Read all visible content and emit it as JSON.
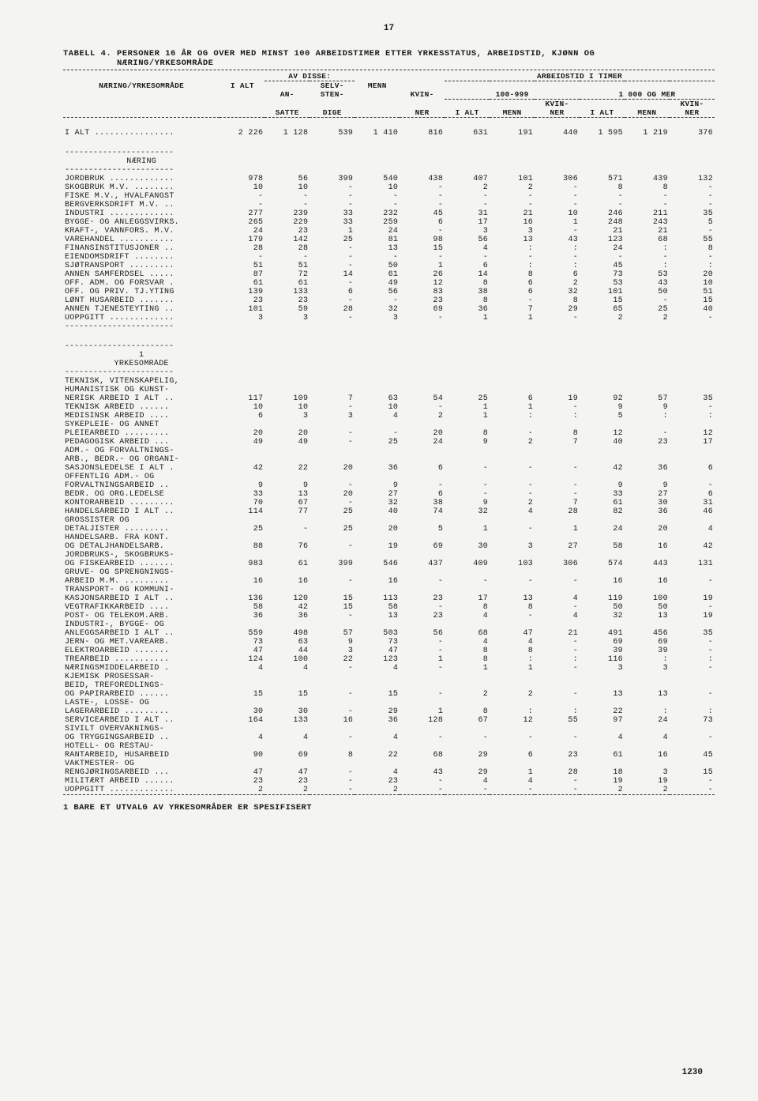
{
  "page_number_top": "17",
  "page_number_bottom": "1230",
  "title_line1": "TABELL 4. PERSONER 16 ÅR OG OVER MED MINST 100 ARBEIDSTIMER ETTER YRKESSTATUS, ARBEIDSTID, KJØNN OG",
  "title_line2": "          NÆRING/YRKESOMRÅDE",
  "header": {
    "group_top1": "AV DISSE:",
    "group_top2": "ARBEIDSTID I TIMER",
    "row1_label": "NÆRING/YRKESOMRÅDE",
    "c1": "I ALT",
    "c2a": "AN-",
    "c2b": "SATTE",
    "c3a": "SELV-",
    "c3b": "STEN-",
    "c3c": "DIGE",
    "c4": "MENN",
    "c5a": "KVIN-",
    "c5b": "NER",
    "sub1": "100-999",
    "sub2": "1 000 OG MER",
    "c6": "I ALT",
    "c7": "MENN",
    "c8a": "KVIN-",
    "c8b": "NER",
    "c9": "I ALT",
    "c10": "MENN",
    "c11a": "KVIN-",
    "c11b": "NER"
  },
  "section_titles": {
    "naering": "NÆRING",
    "yrke_num": "1",
    "yrke": "YRKESOMRÅDE"
  },
  "footnote": "1 BARE ET UTVALG AV YRKESOMRÅDER ER SPESIFISERT",
  "total_row": {
    "label": "I ALT ................",
    "v": [
      "2 226",
      "1 128",
      "539",
      "1 410",
      "816",
      "631",
      "191",
      "440",
      "1 595",
      "1 219",
      "376"
    ]
  },
  "rows_naering": [
    {
      "label": "JORDBRUK .............",
      "v": [
        "978",
        "56",
        "399",
        "540",
        "438",
        "407",
        "101",
        "306",
        "571",
        "439",
        "132"
      ]
    },
    {
      "label": "SKOGBRUK M.V. ........",
      "v": [
        "10",
        "10",
        "-",
        "10",
        "-",
        "2",
        "2",
        "-",
        "8",
        "8",
        "-"
      ]
    },
    {
      "label": "FISKE M.V., HVALFANGST",
      "v": [
        "-",
        "-",
        "-",
        "-",
        "-",
        "-",
        "-",
        "-",
        "-",
        "-",
        "-"
      ]
    },
    {
      "label": "BERGVERKSDRIFT M.V. ..",
      "v": [
        "-",
        "-",
        "-",
        "-",
        "-",
        "-",
        "-",
        "-",
        "-",
        "-",
        "-"
      ]
    },
    {
      "label": "INDUSTRI .............",
      "v": [
        "277",
        "239",
        "33",
        "232",
        "45",
        "31",
        "21",
        "10",
        "246",
        "211",
        "35"
      ]
    },
    {
      "label": "BYGGE- OG ANLEGGSVIRKS.",
      "v": [
        "265",
        "229",
        "33",
        "259",
        "6",
        "17",
        "16",
        "1",
        "248",
        "243",
        "5"
      ]
    },
    {
      "label": "KRAFT-, VANNFORS. M.V.",
      "v": [
        "24",
        "23",
        "1",
        "24",
        "-",
        "3",
        "3",
        "-",
        "21",
        "21",
        "-"
      ]
    },
    {
      "label": "VAREHANDEL ...........",
      "v": [
        "179",
        "142",
        "25",
        "81",
        "98",
        "56",
        "13",
        "43",
        "123",
        "68",
        "55"
      ]
    },
    {
      "label": "FINANSINSTITUSJONER ..",
      "v": [
        "28",
        "28",
        "-",
        "13",
        "15",
        "4",
        ":",
        ":",
        "24",
        ":",
        "8"
      ]
    },
    {
      "label": "EIENDOMSDRIFT ........",
      "v": [
        "-",
        "-",
        "-",
        "-",
        "-",
        "-",
        "-",
        "-",
        "-",
        "-",
        "-"
      ]
    },
    {
      "label": "SJØTRANSPORT .........",
      "v": [
        "51",
        "51",
        "-",
        "50",
        "1",
        "6",
        ":",
        ":",
        "45",
        ":",
        ":"
      ]
    },
    {
      "label": "ANNEN SAMFERDSEL .....",
      "v": [
        "87",
        "72",
        "14",
        "61",
        "26",
        "14",
        "8",
        "6",
        "73",
        "53",
        "20"
      ]
    },
    {
      "label": "OFF. ADM. OG FORSVAR .",
      "v": [
        "61",
        "61",
        "-",
        "49",
        "12",
        "8",
        "6",
        "2",
        "53",
        "43",
        "10"
      ]
    },
    {
      "label": "OFF. OG PRIV. TJ.YTING",
      "v": [
        "139",
        "133",
        "6",
        "56",
        "83",
        "38",
        "6",
        "32",
        "101",
        "50",
        "51"
      ]
    },
    {
      "label": "LØNT HUSARBEID .......",
      "v": [
        "23",
        "23",
        "-",
        "-",
        "23",
        "8",
        "-",
        "8",
        "15",
        "-",
        "15"
      ]
    },
    {
      "label": "ANNEN TJENESTEYTING ..",
      "v": [
        "101",
        "59",
        "28",
        "32",
        "69",
        "36",
        "7",
        "29",
        "65",
        "25",
        "40"
      ]
    },
    {
      "label": "UOPPGITT .............",
      "v": [
        "3",
        "3",
        "-",
        "3",
        "-",
        "1",
        "1",
        "-",
        "2",
        "2",
        "-"
      ]
    }
  ],
  "rows_yrke": [
    {
      "label": "TEKNISK, VITENSKAPELIG,",
      "v": [
        "",
        "",
        "",
        "",
        "",
        "",
        "",
        "",
        "",
        "",
        ""
      ]
    },
    {
      "label": "HUMANISTISK OG KUNST-",
      "v": [
        "",
        "",
        "",
        "",
        "",
        "",
        "",
        "",
        "",
        "",
        ""
      ]
    },
    {
      "label": "NERISK ARBEID I ALT ..",
      "v": [
        "117",
        "109",
        "7",
        "63",
        "54",
        "25",
        "6",
        "19",
        "92",
        "57",
        "35"
      ]
    },
    {
      "label": " TEKNISK ARBEID ......",
      "v": [
        "10",
        "10",
        "-",
        "10",
        "-",
        "1",
        "1",
        "-",
        "9",
        "9",
        "-"
      ]
    },
    {
      "label": " MEDISINSK ARBEID ....",
      "v": [
        "6",
        "3",
        "3",
        "4",
        "2",
        "1",
        ":",
        ":",
        "5",
        ":",
        ":"
      ]
    },
    {
      "label": " SYKEPLEIE- OG ANNET",
      "v": [
        "",
        "",
        "",
        "",
        "",
        "",
        "",
        "",
        "",
        "",
        ""
      ]
    },
    {
      "label": " PLEIEARBEID .........",
      "v": [
        "20",
        "20",
        "-",
        "-",
        "20",
        "8",
        "-",
        "8",
        "12",
        "-",
        "12"
      ]
    },
    {
      "label": " PEDAGOGISK ARBEID ...",
      "v": [
        "49",
        "49",
        "-",
        "25",
        "24",
        "9",
        "2",
        "7",
        "40",
        "23",
        "17"
      ]
    },
    {
      "label": "ADM.- OG FORVALTNINGS-",
      "v": [
        "",
        "",
        "",
        "",
        "",
        "",
        "",
        "",
        "",
        "",
        ""
      ]
    },
    {
      "label": "ARB., BEDR.- OG ORGANI-",
      "v": [
        "",
        "",
        "",
        "",
        "",
        "",
        "",
        "",
        "",
        "",
        ""
      ]
    },
    {
      "label": "SASJONSLEDELSE I ALT .",
      "v": [
        "42",
        "22",
        "20",
        "36",
        "6",
        "-",
        "-",
        "-",
        "42",
        "36",
        "6"
      ]
    },
    {
      "label": " OFFENTLIG ADM.- OG",
      "v": [
        "",
        "",
        "",
        "",
        "",
        "",
        "",
        "",
        "",
        "",
        ""
      ]
    },
    {
      "label": " FORVALTNINGSARBEID ..",
      "v": [
        "9",
        "9",
        "-",
        "9",
        "-",
        "-",
        "-",
        "-",
        "9",
        "9",
        "-"
      ]
    },
    {
      "label": " BEDR. OG ORG.LEDELSE",
      "v": [
        "33",
        "13",
        "20",
        "27",
        "6",
        "-",
        "-",
        "-",
        "33",
        "27",
        "6"
      ]
    },
    {
      "label": "KONTORARBEID .........",
      "v": [
        "70",
        "67",
        "-",
        "32",
        "38",
        "9",
        "2",
        "7",
        "61",
        "30",
        "31"
      ]
    },
    {
      "label": "HANDELSARBEID I ALT ..",
      "v": [
        "114",
        "77",
        "25",
        "40",
        "74",
        "32",
        "4",
        "28",
        "82",
        "36",
        "46"
      ]
    },
    {
      "label": " GROSSISTER OG",
      "v": [
        "",
        "",
        "",
        "",
        "",
        "",
        "",
        "",
        "",
        "",
        ""
      ]
    },
    {
      "label": " DETALJISTER .........",
      "v": [
        "25",
        "-",
        "25",
        "20",
        "5",
        "1",
        "-",
        "1",
        "24",
        "20",
        "4"
      ]
    },
    {
      "label": " HANDELSARB. FRA KONT.",
      "v": [
        "",
        "",
        "",
        "",
        "",
        "",
        "",
        "",
        "",
        "",
        ""
      ]
    },
    {
      "label": " OG DETALJHANDELSARB.",
      "v": [
        "88",
        "76",
        "-",
        "19",
        "69",
        "30",
        "3",
        "27",
        "58",
        "16",
        "42"
      ]
    },
    {
      "label": "JORDBRUKS-, SKOGBRUKS-",
      "v": [
        "",
        "",
        "",
        "",
        "",
        "",
        "",
        "",
        "",
        "",
        ""
      ]
    },
    {
      "label": "OG FISKEARBEID .......",
      "v": [
        "983",
        "61",
        "399",
        "546",
        "437",
        "409",
        "103",
        "306",
        "574",
        "443",
        "131"
      ]
    },
    {
      "label": "GRUVE- OG SPRENGNINGS-",
      "v": [
        "",
        "",
        "",
        "",
        "",
        "",
        "",
        "",
        "",
        "",
        ""
      ]
    },
    {
      "label": "ARBEID M.M.  .........",
      "v": [
        "16",
        "16",
        "-",
        "16",
        "-",
        "-",
        "-",
        "-",
        "16",
        "16",
        "-"
      ]
    },
    {
      "label": "TRANSPORT- OG KOMMUNI-",
      "v": [
        "",
        "",
        "",
        "",
        "",
        "",
        "",
        "",
        "",
        "",
        ""
      ]
    },
    {
      "label": "KASJONSARBEID I ALT ..",
      "v": [
        "136",
        "120",
        "15",
        "113",
        "23",
        "17",
        "13",
        "4",
        "119",
        "100",
        "19"
      ]
    },
    {
      "label": " VEGTRAFIKKARBEID ....",
      "v": [
        "58",
        "42",
        "15",
        "58",
        "-",
        "8",
        "8",
        "-",
        "50",
        "50",
        "-"
      ]
    },
    {
      "label": " POST- OG TELEKOM.ARB.",
      "v": [
        "36",
        "36",
        "-",
        "13",
        "23",
        "4",
        "-",
        "4",
        "32",
        "13",
        "19"
      ]
    },
    {
      "label": "INDUSTRI-, BYGGE- OG",
      "v": [
        "",
        "",
        "",
        "",
        "",
        "",
        "",
        "",
        "",
        "",
        ""
      ]
    },
    {
      "label": "ANLEGGSARBEID I ALT ..",
      "v": [
        "559",
        "498",
        "57",
        "503",
        "56",
        "68",
        "47",
        "21",
        "491",
        "456",
        "35"
      ]
    },
    {
      "label": " JERN- OG MET.VAREARB.",
      "v": [
        "73",
        "63",
        "9",
        "73",
        "-",
        "4",
        "4",
        "-",
        "69",
        "69",
        "-"
      ]
    },
    {
      "label": " ELEKTROARBEID .......",
      "v": [
        "47",
        "44",
        "3",
        "47",
        "-",
        "8",
        "8",
        "-",
        "39",
        "39",
        "-"
      ]
    },
    {
      "label": " TREARBEID ...........",
      "v": [
        "124",
        "100",
        "22",
        "123",
        "1",
        "8",
        ":",
        ":",
        "116",
        ":",
        ":"
      ]
    },
    {
      "label": " NÆRINGSMIDDELARBEID .",
      "v": [
        "4",
        "4",
        "-",
        "4",
        "-",
        "1",
        "1",
        "-",
        "3",
        "3",
        "-"
      ]
    },
    {
      "label": " KJEMISK PROSESSAR-",
      "v": [
        "",
        "",
        "",
        "",
        "",
        "",
        "",
        "",
        "",
        "",
        ""
      ]
    },
    {
      "label": " BEID, TREFOREDLINGS-",
      "v": [
        "",
        "",
        "",
        "",
        "",
        "",
        "",
        "",
        "",
        "",
        ""
      ]
    },
    {
      "label": " OG PAPIRARBEID ......",
      "v": [
        "15",
        "15",
        "-",
        "15",
        "-",
        "2",
        "2",
        "-",
        "13",
        "13",
        "-"
      ]
    },
    {
      "label": " LASTE-, LOSSE- OG",
      "v": [
        "",
        "",
        "",
        "",
        "",
        "",
        "",
        "",
        "",
        "",
        ""
      ]
    },
    {
      "label": " LAGERARBEID .........",
      "v": [
        "30",
        "30",
        "-",
        "29",
        "1",
        "8",
        ":",
        ":",
        "22",
        ":",
        ":"
      ]
    },
    {
      "label": "SERVICEARBEID I ALT ..",
      "v": [
        "164",
        "133",
        "16",
        "36",
        "128",
        "67",
        "12",
        "55",
        "97",
        "24",
        "73"
      ]
    },
    {
      "label": " SIVILT OVERVÅKNINGS-",
      "v": [
        "",
        "",
        "",
        "",
        "",
        "",
        "",
        "",
        "",
        "",
        ""
      ]
    },
    {
      "label": " OG TRYGGINGSARBEID ..",
      "v": [
        "4",
        "4",
        "-",
        "4",
        "-",
        "-",
        "-",
        "-",
        "4",
        "4",
        "-"
      ]
    },
    {
      "label": " HOTELL- OG RESTAU-",
      "v": [
        "",
        "",
        "",
        "",
        "",
        "",
        "",
        "",
        "",
        "",
        ""
      ]
    },
    {
      "label": " RANTARBEID, HUSARBEID",
      "v": [
        "90",
        "69",
        "8",
        "22",
        "68",
        "29",
        "6",
        "23",
        "61",
        "16",
        "45"
      ]
    },
    {
      "label": " VAKTMESTER- OG",
      "v": [
        "",
        "",
        "",
        "",
        "",
        "",
        "",
        "",
        "",
        "",
        ""
      ]
    },
    {
      "label": " RENGJØRINGSARBEID ...",
      "v": [
        "47",
        "47",
        "-",
        "4",
        "43",
        "29",
        "1",
        "28",
        "18",
        "3",
        "15"
      ]
    },
    {
      "label": "MILITÆRT ARBEID ......",
      "v": [
        "23",
        "23",
        "-",
        "23",
        "-",
        "4",
        "4",
        "-",
        "19",
        "19",
        "-"
      ]
    },
    {
      "label": "UOPPGITT .............",
      "v": [
        "2",
        "2",
        "-",
        "2",
        "-",
        "-",
        "-",
        "-",
        "2",
        "2",
        "-"
      ]
    }
  ]
}
